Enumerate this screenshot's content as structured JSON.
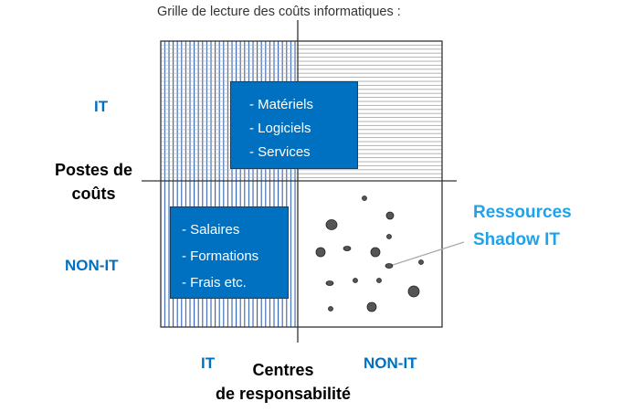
{
  "title": "Grille de lecture des coûts informatiques :",
  "y_axis": {
    "label": "Postes de coûts",
    "label_lines": [
      "Postes de",
      "coûts"
    ],
    "categories": [
      "IT",
      "NON-IT"
    ]
  },
  "x_axis": {
    "label": "Centres de responsabilité",
    "label_lines": [
      "Centres",
      "de responsabilité"
    ],
    "categories": [
      "IT",
      "NON-IT"
    ]
  },
  "quadrants": {
    "it_it": {
      "items": [
        "- Matériels",
        "- Logiciels",
        "- Services"
      ]
    },
    "nonit_it": {
      "items": [
        "- Salaires",
        "- Formations",
        "- Frais etc."
      ]
    },
    "nonit_nonit": {
      "callout_lines": [
        "Ressources",
        "Shadow IT"
      ]
    }
  },
  "colors": {
    "box": "#0070C0",
    "axis_category": "#0070C0",
    "callout": "#1FA2E8",
    "hatch_left": "#2f5fae",
    "hatch_right": "#999999",
    "dots": "#555555"
  }
}
